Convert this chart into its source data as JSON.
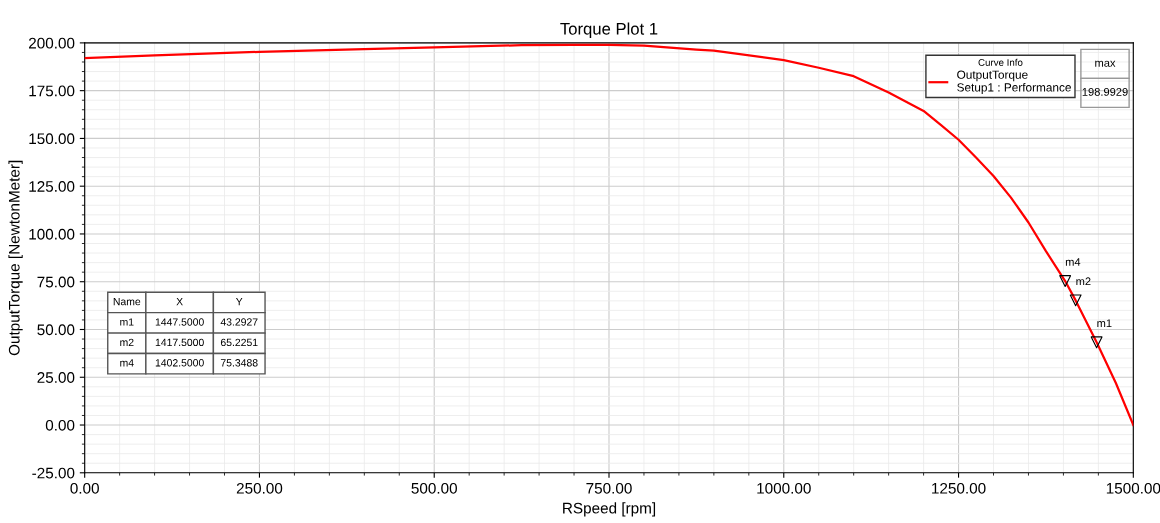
{
  "chart_data": {
    "type": "line",
    "title": "Torque Plot 1",
    "xlabel": "RSpeed [rpm]",
    "ylabel": "OutputTorque [NewtonMeter]",
    "legend_title": "Curve Info",
    "series": [
      {
        "name": "OutputTorque",
        "color": "#ff0000",
        "x": [
          0,
          100,
          250,
          400,
          500,
          625,
          700,
          750,
          800,
          875,
          900,
          1000,
          1050,
          1100,
          1150,
          1200,
          1225,
          1250,
          1275,
          1300,
          1325,
          1350,
          1375,
          1402.5,
          1417.5,
          1447.5,
          1475,
          1500
        ],
        "values": [
          192,
          193.5,
          195.3,
          196.7,
          197.6,
          198.8,
          199,
          199,
          198.6,
          196.5,
          196,
          191,
          187,
          182.6,
          174,
          164.4,
          157,
          149.3,
          140,
          130.3,
          119,
          106,
          91,
          75.3488,
          65.2251,
          43.2927,
          22,
          0
        ]
      },
      {
        "type": "scatter",
        "color": "#000000",
        "marker": "triangle",
        "x": [
          1447.5,
          1417.5,
          1402.5
        ],
        "values": [
          43.2927,
          65.2251,
          75.3488
        ]
      }
    ],
    "marker": "none",
    "line_style": "solid",
    "legend": "top right",
    "grid": true,
    "xlim": [
      0,
      1500
    ],
    "ylim": [
      -25,
      200
    ],
    "xticks": [
      {
        "value": 0,
        "label": "0.00"
      },
      {
        "value": 250,
        "label": "250.00"
      },
      {
        "value": 500,
        "label": "500.00"
      },
      {
        "value": 750,
        "label": "750.00"
      },
      {
        "value": 1000,
        "label": "1000.00"
      },
      {
        "value": 1250,
        "label": "1250.00"
      },
      {
        "value": 1500,
        "label": "1500.00"
      }
    ],
    "yticks": [
      {
        "value": -25,
        "label": "-25.00"
      },
      {
        "value": 0,
        "label": "0.00"
      },
      {
        "value": 25,
        "label": "25.00"
      },
      {
        "value": 50,
        "label": "50.00"
      },
      {
        "value": 75,
        "label": "75.00"
      },
      {
        "value": 100,
        "label": "100.00"
      },
      {
        "value": 125,
        "label": "125.00"
      },
      {
        "value": 150,
        "label": "150.00"
      },
      {
        "value": 175,
        "label": "175.00"
      },
      {
        "value": 200,
        "label": "200.00"
      }
    ],
    "annotations": [
      {
        "text": "m1",
        "x": 1447.5,
        "y": 43.2927
      },
      {
        "text": "m2",
        "x": 1417.5,
        "y": 65.2251
      },
      {
        "text": "m4",
        "x": 1402.5,
        "y": 75.3488
      },
      "Setup1 : Performance",
      "max",
      "198.9929",
      "Name",
      "X",
      "Y",
      "m1",
      "1447.5000",
      "43.2927",
      "m2",
      "1417.5000",
      "65.2251",
      "m4",
      "1402.5000",
      "75.3488"
    ]
  }
}
